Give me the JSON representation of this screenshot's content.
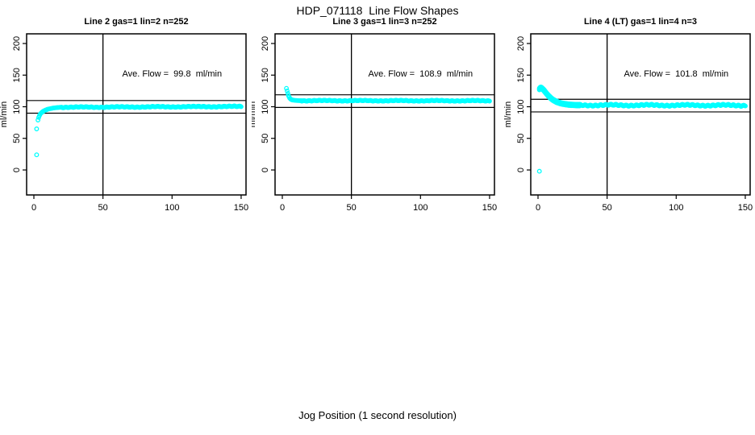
{
  "page": {
    "title": "HDP_071118  Line Flow Shapes",
    "outer_xlabel": "Jog Position (1 second resolution)"
  },
  "chart_data": [
    {
      "type": "scatter",
      "title": "Line 2 gas=1 lin=2 n=252",
      "gas": 1,
      "lin": 2,
      "n": 252,
      "annotation": "Ave. Flow =  99.8  ml/min",
      "ave_flow": 99.8,
      "ylabel": "ml/min",
      "x_ticks": [
        0,
        50,
        100,
        150
      ],
      "y_ticks": [
        0,
        50,
        100,
        150,
        200
      ],
      "xlim": [
        -5.3,
        153.6
      ],
      "ylim": [
        -39.5,
        215.3
      ],
      "vline": 50,
      "hlines": [
        109.8,
        89.8
      ],
      "marker": "open-circle",
      "marker_color": "#00FFFF",
      "annotation_pos": [
        100,
        150
      ],
      "outliers": [
        [
          2,
          24
        ]
      ],
      "lead_points": [
        [
          2,
          65
        ],
        [
          3,
          79
        ],
        [
          3.5,
          83
        ],
        [
          4,
          86
        ],
        [
          4.5,
          88
        ],
        [
          5,
          89.5
        ],
        [
          5.5,
          90.6
        ],
        [
          6,
          91.5
        ],
        [
          6.5,
          92.3
        ],
        [
          7,
          93
        ],
        [
          7.5,
          93.7
        ],
        [
          8,
          94.2
        ],
        [
          8.5,
          94.8
        ],
        [
          9,
          95.2
        ],
        [
          9.5,
          95.6
        ],
        [
          10,
          96
        ],
        [
          11,
          96.6
        ],
        [
          12,
          97.1
        ],
        [
          13,
          97.5
        ],
        [
          14,
          97.9
        ],
        [
          15,
          98.2
        ],
        [
          16,
          98.5
        ],
        [
          17,
          98.7
        ],
        [
          18,
          98.9
        ],
        [
          19,
          99.1
        ],
        [
          20,
          99.2
        ]
      ],
      "lead_jitter": 0,
      "plateau": {
        "x_from": 20,
        "x_to": 150,
        "step": 0.5,
        "y_start": 99.2,
        "y_end": 100.4,
        "jitter": 0.9
      }
    },
    {
      "type": "scatter",
      "title": "Line 3 gas=1 lin=3 n=252",
      "gas": 1,
      "lin": 3,
      "n": 252,
      "annotation": "Ave. Flow =  108.9  ml/min",
      "ave_flow": 108.9,
      "ylabel": "ml/min",
      "x_ticks": [
        0,
        50,
        100,
        150
      ],
      "y_ticks": [
        0,
        50,
        100,
        150,
        200
      ],
      "xlim": [
        -5.3,
        153.6
      ],
      "ylim": [
        -39.5,
        215.3
      ],
      "vline": 50,
      "hlines": [
        118.9,
        98.9
      ],
      "marker": "open-circle",
      "marker_color": "#00FFFF",
      "annotation_pos": [
        100,
        150
      ],
      "outliers": [],
      "lead_points": [
        [
          3,
          129
        ],
        [
          3.5,
          125
        ],
        [
          4,
          121
        ],
        [
          4.5,
          117.5
        ],
        [
          5,
          115
        ],
        [
          5.5,
          113.2
        ],
        [
          6,
          112.2
        ],
        [
          6.5,
          111.4
        ],
        [
          7,
          111
        ],
        [
          7.5,
          110.6
        ],
        [
          8,
          110.4
        ],
        [
          9,
          110.1
        ],
        [
          10,
          109.9
        ],
        [
          11,
          109.8
        ],
        [
          12,
          109.7
        ],
        [
          13,
          109.6
        ],
        [
          14,
          109.6
        ]
      ],
      "lead_jitter": 0,
      "plateau": {
        "x_from": 14,
        "x_to": 150,
        "step": 0.5,
        "y_start": 109.6,
        "y_end": 109.4,
        "jitter": 0.8
      }
    },
    {
      "type": "scatter",
      "title": "Line 4 (LT) gas=1 lin=4 n=3",
      "gas": 1,
      "lin": 4,
      "n": 3,
      "annotation": "Ave. Flow =  101.8  ml/min",
      "ave_flow": 101.8,
      "ylabel": "ml/min",
      "x_ticks": [
        0,
        50,
        100,
        150
      ],
      "y_ticks": [
        0,
        50,
        100,
        150,
        200
      ],
      "xlim": [
        -5.3,
        153.6
      ],
      "ylim": [
        -39.5,
        215.3
      ],
      "vline": 50,
      "hlines": [
        111.8,
        91.8
      ],
      "marker": "open-circle",
      "marker_color": "#00FFFF",
      "annotation_pos": [
        100,
        150
      ],
      "outliers": [
        [
          1,
          -2
        ]
      ],
      "lead_points": [
        [
          1,
          128
        ],
        [
          1.5,
          129.5
        ],
        [
          2,
          130
        ],
        [
          2.5,
          129.6
        ],
        [
          3,
          128.8
        ],
        [
          3.5,
          127.8
        ],
        [
          4,
          126.6
        ],
        [
          4.5,
          125.4
        ],
        [
          5,
          124
        ],
        [
          5.5,
          122.7
        ],
        [
          6,
          121.3
        ],
        [
          6.5,
          120
        ],
        [
          7,
          118.7
        ],
        [
          7.5,
          117.5
        ],
        [
          8,
          116.3
        ],
        [
          8.5,
          115.2
        ],
        [
          9,
          114.2
        ],
        [
          9.5,
          113.2
        ],
        [
          10,
          112.3
        ],
        [
          10.5,
          111.5
        ],
        [
          11,
          110.7
        ],
        [
          11.5,
          110
        ],
        [
          12,
          109.4
        ],
        [
          12.5,
          108.8
        ],
        [
          13,
          108.2
        ],
        [
          13.5,
          107.7
        ],
        [
          14,
          107.3
        ],
        [
          15,
          106.5
        ],
        [
          16,
          105.8
        ],
        [
          17,
          105.2
        ],
        [
          18,
          104.7
        ],
        [
          19,
          104.3
        ],
        [
          20,
          104
        ],
        [
          21,
          103.7
        ],
        [
          22,
          103.4
        ],
        [
          23,
          103.2
        ],
        [
          24,
          103
        ],
        [
          25,
          102.9
        ],
        [
          26,
          102.8
        ],
        [
          27,
          102.7
        ],
        [
          28,
          102.6
        ],
        [
          29,
          102.5
        ],
        [
          30,
          102.5
        ]
      ],
      "lead_jitter": 1.3,
      "plateau": {
        "x_from": 30,
        "x_to": 150,
        "step": 0.4,
        "y_start": 102.5,
        "y_end": 102.2,
        "jitter": 1.6
      }
    }
  ]
}
